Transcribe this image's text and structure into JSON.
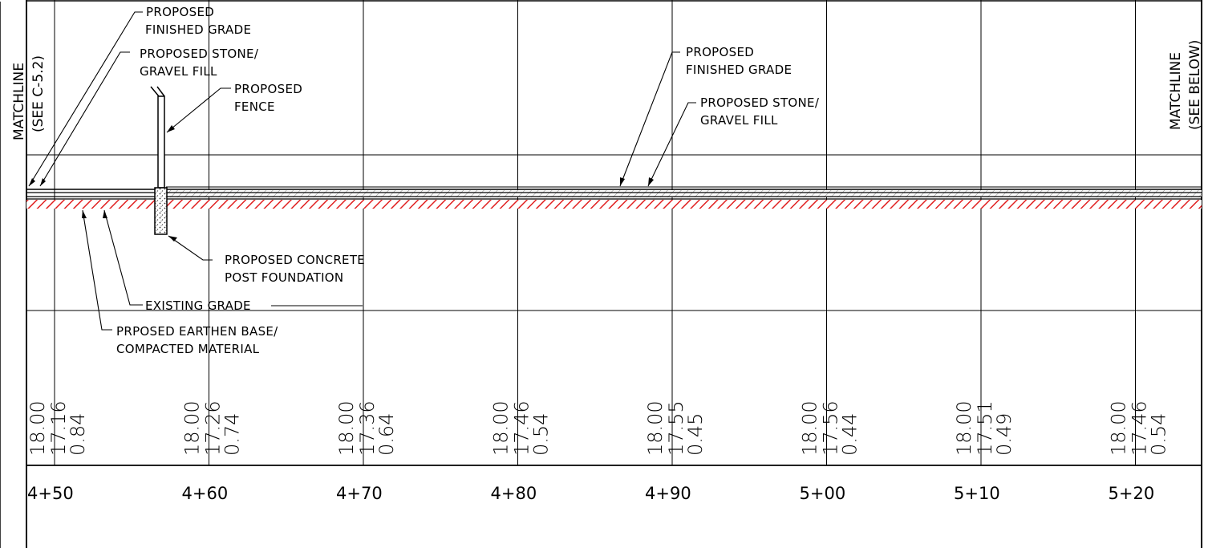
{
  "matchline_left": {
    "line1": "MATCHLINE",
    "line2": "(SEE C-5.2)"
  },
  "matchline_right": {
    "line1": "MATCHLINE",
    "line2": "(SEE BELOW)"
  },
  "callouts": {
    "finished_grade_left": {
      "line1": "PROPOSED",
      "line2": "FINISHED GRADE"
    },
    "stone_fill_left": {
      "line1": "PROPOSED STONE/",
      "line2": "GRAVEL FILL"
    },
    "fence": {
      "line1": "PROPOSED",
      "line2": "FENCE"
    },
    "finished_grade_right": {
      "line1": "PROPOSED",
      "line2": "FINISHED GRADE"
    },
    "stone_fill_right": {
      "line1": "PROPOSED STONE/",
      "line2": "GRAVEL FILL"
    },
    "concrete_post": {
      "line1": "PROPOSED CONCRETE",
      "line2": "POST FOUNDATION"
    },
    "existing_grade": {
      "line1": "EXISTING GRADE"
    },
    "earthen_base": {
      "line1": "PRPOSED EARTHEN BASE/",
      "line2": "COMPACTED MATERIAL"
    }
  },
  "stations": [
    {
      "label": "4+50",
      "proposed": "18.00",
      "existing": "17.16",
      "depth": "0.84"
    },
    {
      "label": "4+60",
      "proposed": "18.00",
      "existing": "17.26",
      "depth": "0.74"
    },
    {
      "label": "4+70",
      "proposed": "18.00",
      "existing": "17.36",
      "depth": "0.64"
    },
    {
      "label": "4+80",
      "proposed": "18.00",
      "existing": "17.46",
      "depth": "0.54"
    },
    {
      "label": "4+90",
      "proposed": "18.00",
      "existing": "17.55",
      "depth": "0.45"
    },
    {
      "label": "5+00",
      "proposed": "18.00",
      "existing": "17.56",
      "depth": "0.44"
    },
    {
      "label": "5+10",
      "proposed": "18.00",
      "existing": "17.51",
      "depth": "0.49"
    },
    {
      "label": "5+20",
      "proposed": "18.00",
      "existing": "17.46",
      "depth": "0.54"
    }
  ],
  "colors": {
    "hatch": "#e02020",
    "ink": "#000000"
  }
}
